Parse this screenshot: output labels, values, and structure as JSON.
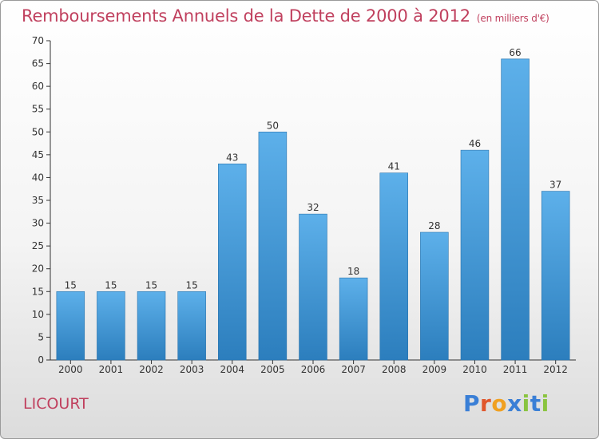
{
  "title": "Remboursements Annuels de la Dette de 2000 à 2012",
  "unit": "(en milliers d'€)",
  "commune": "LICOURT",
  "logo": {
    "text": "Proxiti",
    "colors": [
      "#3a7fd6",
      "#e0562b",
      "#f0a020",
      "#3a7fd6",
      "#8ac43f",
      "#3a7fd6",
      "#8ac43f"
    ]
  },
  "colors": {
    "title": "#c0405e",
    "bar_top": "#5db0ea",
    "bar_bottom": "#2c7ebd",
    "axis": "#333333",
    "grid": "#d0d0d0"
  },
  "chart_data": {
    "type": "bar",
    "categories": [
      "2000",
      "2001",
      "2002",
      "2003",
      "2004",
      "2005",
      "2006",
      "2007",
      "2008",
      "2009",
      "2010",
      "2011",
      "2012"
    ],
    "values": [
      15,
      15,
      15,
      15,
      43,
      50,
      32,
      18,
      41,
      28,
      46,
      66,
      37
    ],
    "ylim": [
      0,
      70
    ],
    "yticks": [
      0,
      5,
      10,
      15,
      20,
      25,
      30,
      35,
      40,
      45,
      50,
      55,
      60,
      65,
      70
    ],
    "grid": false,
    "data_labels": true
  }
}
